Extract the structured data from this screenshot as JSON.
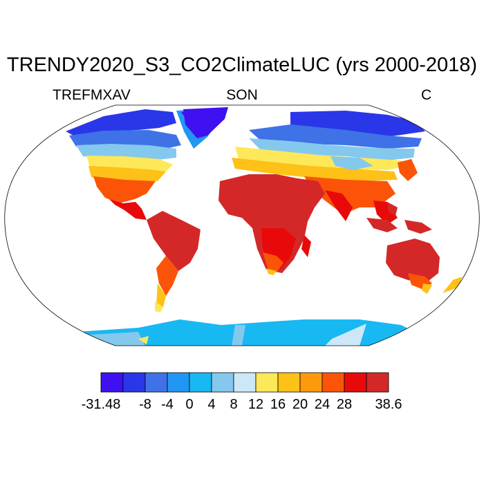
{
  "title": "TRENDY2020_S3_CO2ClimateLUC (yrs 2000-2018)",
  "left_label": "TREFMXAV",
  "center_label": "SON",
  "right_label": "C",
  "colorbar": {
    "colors": [
      "#3f10f0",
      "#2a37e8",
      "#3f72e6",
      "#2196f3",
      "#18b8f3",
      "#84c8ee",
      "#cce8f8",
      "#fde85a",
      "#fdc117",
      "#fd9a0c",
      "#fb5408",
      "#e80a0a",
      "#d42828"
    ],
    "labels": [
      "-31.48",
      "-8",
      "-4",
      "0",
      "4",
      "8",
      "12",
      "16",
      "20",
      "24",
      "28",
      "38.6"
    ]
  }
}
